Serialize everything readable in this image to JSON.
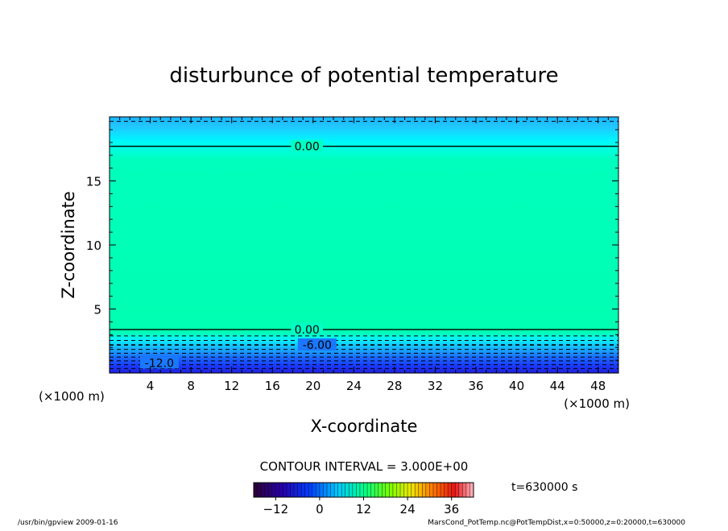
{
  "chart_data": {
    "type": "heatmap",
    "title": "disturbunce of potential temperature",
    "xlabel": "X-coordinate",
    "ylabel": "Z-coordinate",
    "x_unit": "(×1000 m)",
    "x_unit_left": "(×1000 m)",
    "xlim": [
      0,
      50
    ],
    "ylim": [
      0,
      20
    ],
    "x_ticks": [
      4,
      8,
      12,
      16,
      20,
      24,
      28,
      32,
      36,
      40,
      44,
      48
    ],
    "y_ticks": [
      5,
      10,
      15
    ],
    "contour_labels": [
      {
        "text": "0.00",
        "x": 17.5,
        "z": 17.7
      },
      {
        "text": "0.00",
        "x": 17.5,
        "z": 3.4
      },
      {
        "text": "-6.00",
        "x": 18.5,
        "z": 2.2
      },
      {
        "text": "-12.0",
        "x": 3.0,
        "z": 0.8
      }
    ],
    "contour_interval_label": "CONTOUR INTERVAL = 3.000E+00",
    "time_label": "t=630000 s",
    "colorbar": {
      "min": -18,
      "max": 42,
      "tick_values": [
        -12,
        0,
        12,
        24,
        36
      ],
      "tick_labels": [
        "−12",
        "0",
        "12",
        "24",
        "36"
      ]
    }
  },
  "footer": {
    "left": "/usr/bin/gpview  2009-01-16",
    "right": "MarsCond_PotTemp.nc@PotTempDist,x=0:50000,z=0:20000,t=630000"
  }
}
